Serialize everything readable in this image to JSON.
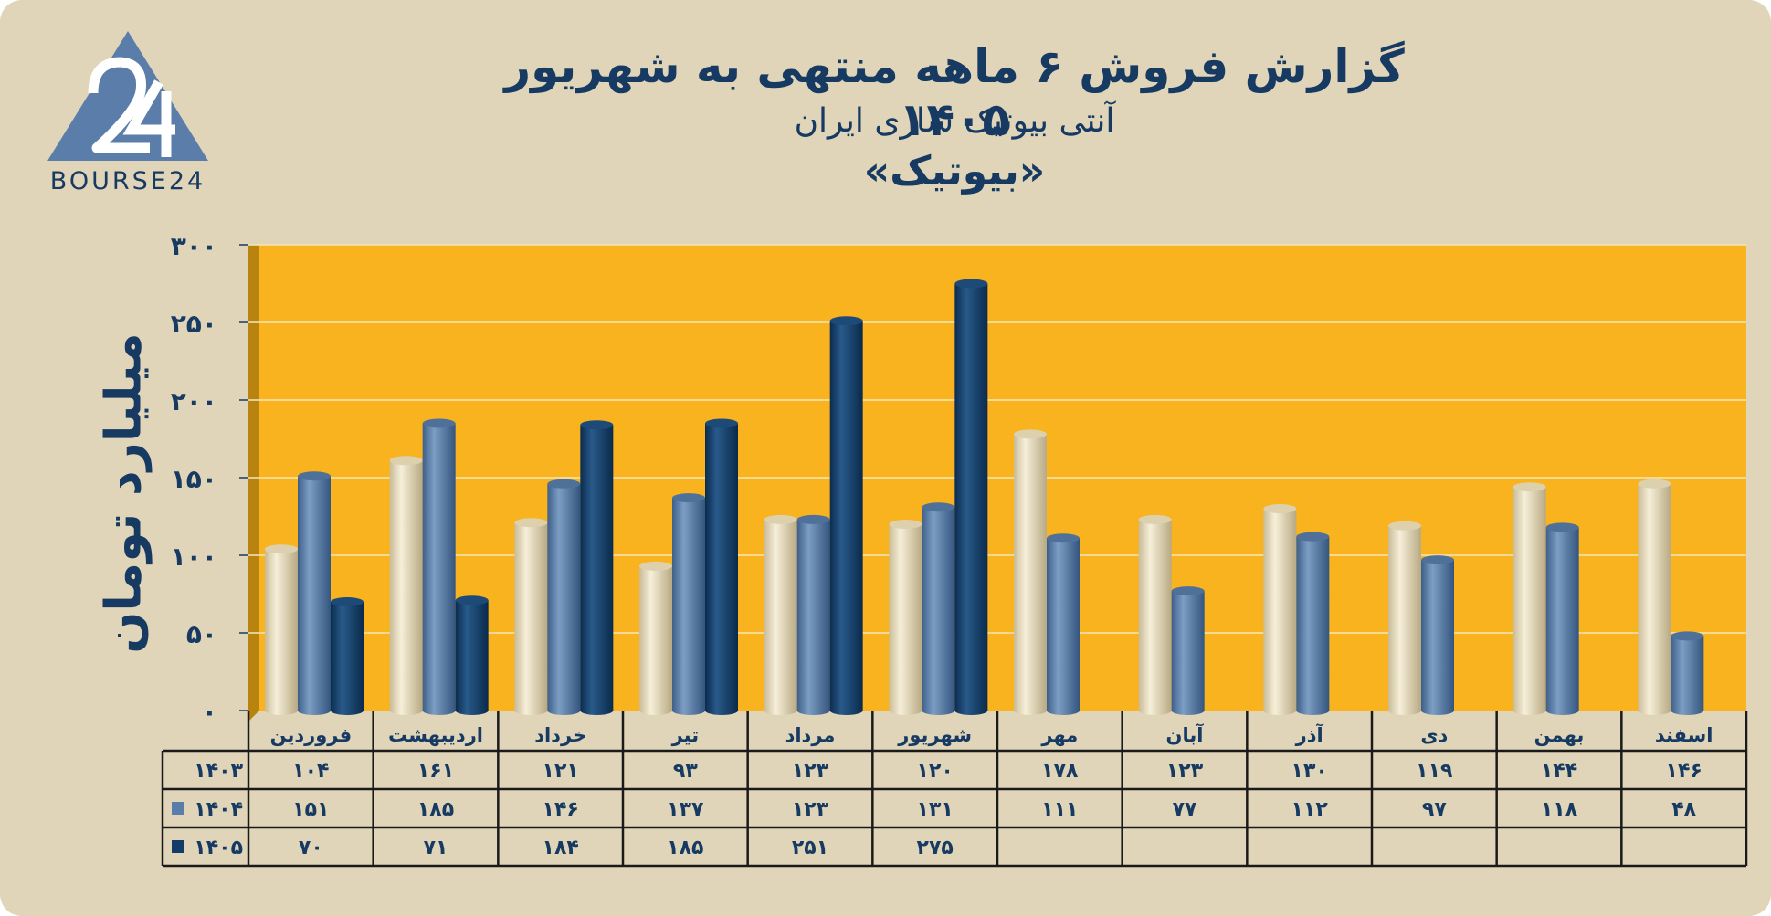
{
  "header": {
    "title": "گزارش  فروش ۶ ماهه منتهی به شهریور ۱۴۰۵",
    "subtitle": "آنتی بیوتیک سازی ایران",
    "ticker": "«بیوتیک»"
  },
  "logo": {
    "text": "BOURSE24",
    "mark": "24"
  },
  "colors": {
    "background": "#e0d5b8",
    "plot_area": "#f8b31f",
    "series_1403": "#e8dcbc",
    "series_1404": "#5a7ea9",
    "series_1405": "#123d68",
    "text": "#173a63"
  },
  "chart_data": {
    "type": "bar",
    "title": "گزارش  فروش ۶ ماهه منتهی به شهریور ۱۴۰۵",
    "ylabel": "میلیارد تومان",
    "ylim": [
      0,
      300
    ],
    "yticks": [
      "۰",
      "۵۰",
      "۱۰۰",
      "۱۵۰",
      "۲۰۰",
      "۲۵۰",
      "۳۰۰"
    ],
    "ytick_values": [
      0,
      50,
      100,
      150,
      200,
      250,
      300
    ],
    "grid": true,
    "categories": [
      "فروردین",
      "اردیبهشت",
      "خرداد",
      "تیر",
      "مرداد",
      "شهریور",
      "مهر",
      "آبان",
      "آذر",
      "دی",
      "بهمن",
      "اسفند"
    ],
    "series": [
      {
        "name": "۱۴۰۳",
        "values": [
          104,
          161,
          121,
          93,
          123,
          120,
          178,
          123,
          130,
          119,
          144,
          146
        ],
        "labels": [
          "۱۰۴",
          "۱۶۱",
          "۱۲۱",
          "۹۳",
          "۱۲۳",
          "۱۲۰",
          "۱۷۸",
          "۱۲۳",
          "۱۳۰",
          "۱۱۹",
          "۱۴۴",
          "۱۴۶"
        ]
      },
      {
        "name": "۱۴۰۴",
        "values": [
          151,
          185,
          146,
          137,
          123,
          131,
          111,
          77,
          112,
          97,
          118,
          48
        ],
        "labels": [
          "۱۵۱",
          "۱۸۵",
          "۱۴۶",
          "۱۳۷",
          "۱۲۳",
          "۱۳۱",
          "۱۱۱",
          "۷۷",
          "۱۱۲",
          "۹۷",
          "۱۱۸",
          "۴۸"
        ]
      },
      {
        "name": "۱۴۰۵",
        "values": [
          70,
          71,
          184,
          185,
          251,
          275,
          null,
          null,
          null,
          null,
          null,
          null
        ],
        "labels": [
          "۷۰",
          "۷۱",
          "۱۸۴",
          "۱۸۵",
          "۲۵۱",
          "۲۷۵",
          "",
          "",
          "",
          "",
          "",
          ""
        ]
      }
    ]
  }
}
